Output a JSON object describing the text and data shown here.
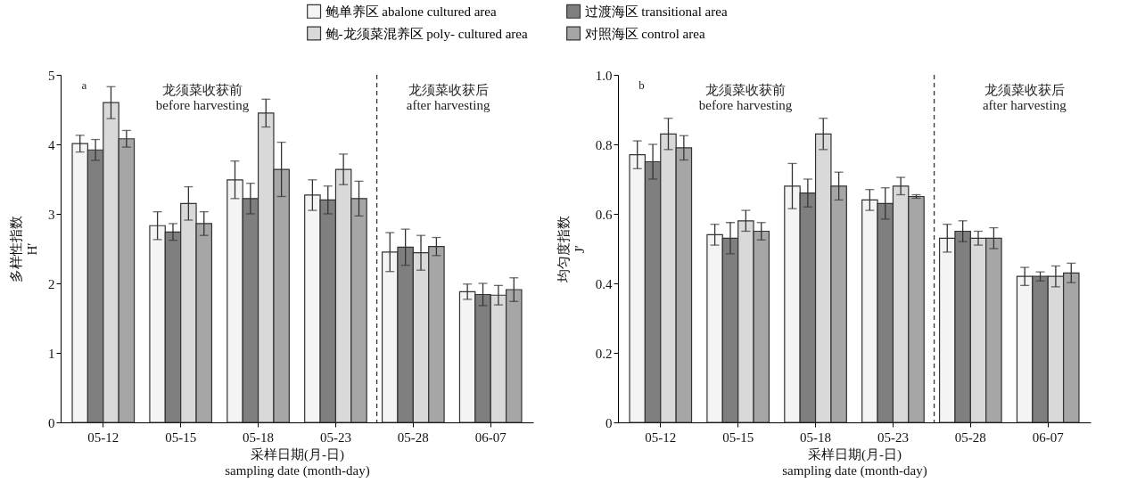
{
  "chart_data": [
    {
      "type": "bar",
      "annotations": [
        "a",
        "龙须菜收获前\nbefore harvesting",
        "龙须菜收获后\nafter harvesting"
      ],
      "xlabel": "采样日期(月-日)\nsampling date (month-day)",
      "ylabel": "多样性指数\nH′",
      "categories": [
        "05-12",
        "05-15",
        "05-18",
        "05-23",
        "05-28",
        "06-07"
      ],
      "series": [
        {
          "name": "鲍单养区 abalone cultured area",
          "color": "#f4f4f4",
          "values": [
            4.01,
            2.83,
            3.49,
            3.27,
            2.45,
            1.88
          ],
          "errors": [
            0.12,
            0.2,
            0.27,
            0.22,
            0.28,
            0.11
          ]
        },
        {
          "name": "过渡海区 transitional area",
          "color": "#7f7f7f",
          "values": [
            3.92,
            2.74,
            3.22,
            3.2,
            2.52,
            1.84
          ],
          "errors": [
            0.15,
            0.12,
            0.22,
            0.2,
            0.26,
            0.16
          ]
        },
        {
          "name": "鲍-龙须菜混养区 poly- cultured area",
          "color": "#d9d9d9",
          "values": [
            4.6,
            3.15,
            4.45,
            3.64,
            2.44,
            1.83
          ],
          "errors": [
            0.23,
            0.24,
            0.2,
            0.22,
            0.25,
            0.14
          ]
        },
        {
          "name": "对照海区 control area",
          "color": "#a6a6a6",
          "values": [
            4.08,
            2.86,
            3.64,
            3.22,
            2.53,
            1.91
          ],
          "errors": [
            0.12,
            0.17,
            0.39,
            0.25,
            0.13,
            0.17
          ]
        }
      ],
      "ylim": [
        0,
        5
      ],
      "yticks": [
        0,
        1,
        2,
        3,
        4,
        5
      ],
      "grid": false,
      "legend": "top",
      "ref_lines": [
        {
          "axis": "x",
          "value": "05-28",
          "line_style": "dashed"
        }
      ]
    },
    {
      "type": "bar",
      "annotations": [
        "b",
        "龙须菜收获前\nbefore harvesting",
        "龙须菜收获后\nafter harvesting"
      ],
      "xlabel": "采样日期(月-日)\nsampling date (month-day)",
      "ylabel": "均匀度指数\nJ′",
      "categories": [
        "05-12",
        "05-15",
        "05-18",
        "05-23",
        "05-28",
        "06-07"
      ],
      "series": [
        {
          "color": "#f4f4f4",
          "values": [
            0.77,
            0.54,
            0.68,
            0.64,
            0.53,
            0.42
          ],
          "errors": [
            0.04,
            0.03,
            0.065,
            0.03,
            0.04,
            0.026
          ]
        },
        {
          "color": "#7f7f7f",
          "values": [
            0.75,
            0.53,
            0.66,
            0.63,
            0.55,
            0.42
          ],
          "errors": [
            0.05,
            0.045,
            0.04,
            0.045,
            0.03,
            0.013
          ]
        },
        {
          "color": "#d9d9d9",
          "values": [
            0.83,
            0.58,
            0.83,
            0.68,
            0.53,
            0.42
          ],
          "errors": [
            0.045,
            0.03,
            0.045,
            0.025,
            0.02,
            0.03
          ]
        },
        {
          "color": "#a6a6a6",
          "values": [
            0.79,
            0.55,
            0.68,
            0.65,
            0.53,
            0.43
          ],
          "errors": [
            0.035,
            0.025,
            0.04,
            0.005,
            0.03,
            0.028
          ]
        }
      ],
      "ylim": [
        0,
        1
      ],
      "yticks": [
        0,
        0.2,
        0.4,
        0.6,
        0.8,
        {
          "value": 1,
          "label": "1.0"
        }
      ],
      "grid": false,
      "ref_lines": [
        {
          "axis": "x",
          "value": "05-28",
          "line_style": "dashed"
        }
      ]
    }
  ]
}
